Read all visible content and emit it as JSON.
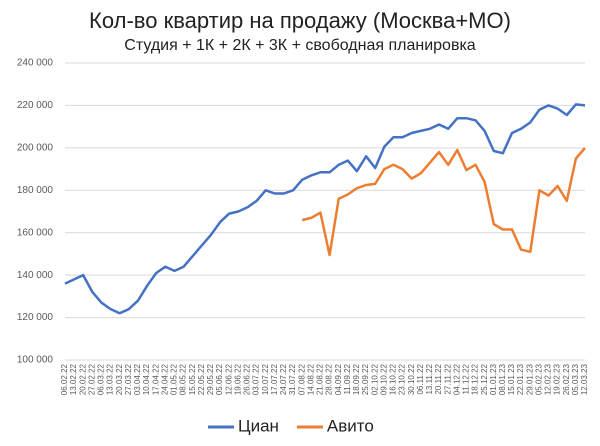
{
  "chart_data": {
    "type": "line",
    "title": "Кол-во квартир на продажу (Москва+МО)",
    "subtitle": "Студия + 1К + 2К + 3К + свободная планировка",
    "categories": [
      "06.02.22",
      "13.02.22",
      "20.02.22",
      "27.02.22",
      "06.03.22",
      "13.03.22",
      "20.03.22",
      "27.03.22",
      "03.04.22",
      "10.04.22",
      "17.04.22",
      "24.04.22",
      "01.05.22",
      "08.05.22",
      "15.05.22",
      "22.05.22",
      "29.05.22",
      "05.06.22",
      "12.06.22",
      "19.06.22",
      "26.06.22",
      "03.07.22",
      "10.07.22",
      "17.07.22",
      "24.07.22",
      "31.07.22",
      "07.08.22",
      "14.08.22",
      "21.08.22",
      "28.08.22",
      "04.09.22",
      "11.09.22",
      "18.09.22",
      "25.09.22",
      "02.10.22",
      "09.10.22",
      "16.10.22",
      "23.10.22",
      "30.10.22",
      "06.11.22",
      "13.11.22",
      "20.11.22",
      "27.11.22",
      "04.12.22",
      "11.12.22",
      "18.12.22",
      "25.12.22",
      "01.01.23",
      "08.01.23",
      "15.01.23",
      "22.01.23",
      "29.01.23",
      "05.02.23",
      "12.02.23",
      "19.02.23",
      "26.02.23",
      "05.03.23",
      "12.03.23"
    ],
    "series": [
      {
        "name": "Циан",
        "color": "#4472c4",
        "values": [
          136000,
          138000,
          140000,
          132000,
          127000,
          124000,
          122000,
          124000,
          128000,
          135000,
          141000,
          144000,
          142000,
          144000,
          149000,
          154000,
          159000,
          165000,
          169000,
          170000,
          172000,
          175000,
          180000,
          178500,
          178500,
          180000,
          185000,
          187000,
          188500,
          188500,
          192000,
          194000,
          189000,
          196000,
          190500,
          200500,
          205000,
          205000,
          207000,
          208000,
          209000,
          211000,
          209000,
          214000,
          214000,
          213000,
          208000,
          198500,
          197500,
          207000,
          209000,
          212000,
          218000,
          220000,
          218500,
          215500,
          220500,
          220000
        ]
      },
      {
        "name": "Авито",
        "color": "#ed7d31",
        "values": [
          null,
          null,
          null,
          null,
          null,
          null,
          null,
          null,
          null,
          null,
          null,
          null,
          null,
          null,
          null,
          null,
          null,
          null,
          null,
          null,
          null,
          null,
          null,
          null,
          null,
          null,
          166000,
          167000,
          169500,
          149500,
          176000,
          178000,
          181000,
          182500,
          183000,
          190000,
          192000,
          190000,
          185500,
          188000,
          193000,
          198000,
          192000,
          199000,
          189500,
          192000,
          184000,
          164000,
          161500,
          161500,
          152000,
          151000,
          180000,
          177500,
          182000,
          175000,
          195000,
          200000
        ]
      }
    ],
    "ylim": [
      100000,
      240000
    ],
    "yticks": [
      {
        "value": 100000,
        "label": "100 000"
      },
      {
        "value": 120000,
        "label": "120 000"
      },
      {
        "value": 140000,
        "label": "140 000"
      },
      {
        "value": 160000,
        "label": "160 000"
      },
      {
        "value": 180000,
        "label": "180 000"
      },
      {
        "value": 200000,
        "label": "200 000"
      },
      {
        "value": 220000,
        "label": "220 000"
      },
      {
        "value": 240000,
        "label": "240 000"
      }
    ],
    "grid": true,
    "legend": "bottom"
  }
}
